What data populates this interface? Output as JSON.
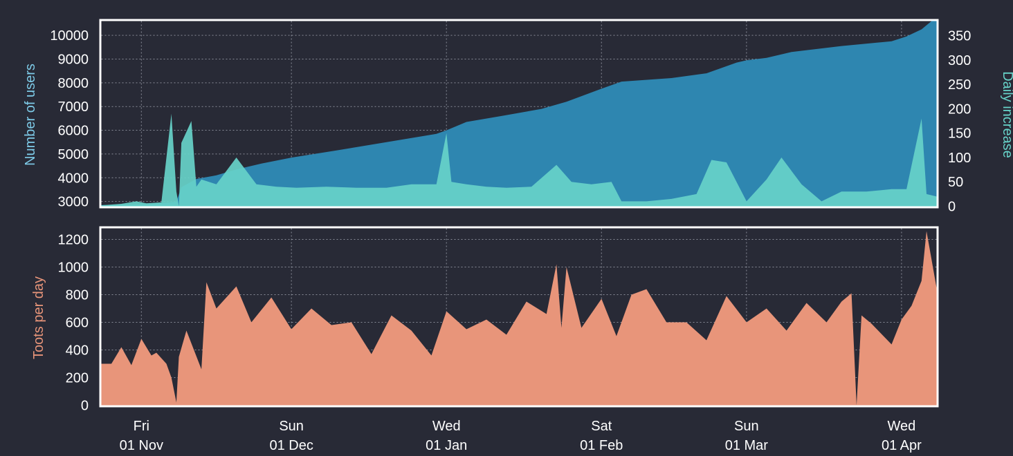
{
  "colors": {
    "background": "#282a36",
    "users_fill": "#2e86b0",
    "daily_fill": "#67d3c9",
    "toots_fill": "#e8957a",
    "users_label": "#7ecbe8",
    "daily_label": "#67d3c9",
    "toots_label": "#e8957a"
  },
  "x_axis": {
    "ticks": [
      {
        "date": "2019-11-01",
        "weekday": "Fri",
        "label": "01 Nov"
      },
      {
        "date": "2019-12-01",
        "weekday": "Sun",
        "label": "01 Dec"
      },
      {
        "date": "2020-01-01",
        "weekday": "Wed",
        "label": "01 Jan"
      },
      {
        "date": "2020-02-01",
        "weekday": "Sat",
        "label": "01 Feb"
      },
      {
        "date": "2020-03-01",
        "weekday": "Sun",
        "label": "01 Mar"
      },
      {
        "date": "2020-04-01",
        "weekday": "Wed",
        "label": "01 Apr"
      }
    ],
    "xlim": [
      "2019-10-24",
      "2020-04-08"
    ]
  },
  "chart_data": [
    {
      "type": "area",
      "ylabel_left": "Number of users",
      "ylabel_right": "Daily increase",
      "ylim_left": [
        2800,
        10600
      ],
      "ylim_right": [
        0,
        380
      ],
      "yticks_left": [
        3000,
        4000,
        5000,
        6000,
        7000,
        8000,
        9000,
        10000
      ],
      "yticks_right": [
        0,
        50,
        100,
        150,
        200,
        250,
        300,
        350
      ],
      "grid": true,
      "series": [
        {
          "name": "Number of users",
          "axis": "left",
          "x": [
            "2019-10-24",
            "2019-10-30",
            "2019-11-05",
            "2019-11-08",
            "2019-11-09",
            "2019-11-12",
            "2019-11-16",
            "2019-11-20",
            "2019-11-25",
            "2019-12-01",
            "2019-12-10",
            "2019-12-20",
            "2019-12-30",
            "2020-01-01",
            "2020-01-05",
            "2020-01-12",
            "2020-01-20",
            "2020-01-25",
            "2020-02-01",
            "2020-02-05",
            "2020-02-15",
            "2020-02-22",
            "2020-02-28",
            "2020-03-01",
            "2020-03-05",
            "2020-03-10",
            "2020-03-20",
            "2020-03-30",
            "2020-04-02",
            "2020-04-05",
            "2020-04-07",
            "2020-04-08"
          ],
          "values": [
            2850,
            2870,
            2920,
            2990,
            3600,
            3950,
            4100,
            4350,
            4600,
            4850,
            5150,
            5500,
            5850,
            6000,
            6350,
            6600,
            6900,
            7200,
            7750,
            8050,
            8200,
            8400,
            8850,
            8950,
            9050,
            9300,
            9550,
            9750,
            9950,
            10250,
            10600,
            10600
          ]
        },
        {
          "name": "Daily increase",
          "axis": "right",
          "x": [
            "2019-10-24",
            "2019-10-28",
            "2019-10-31",
            "2019-11-02",
            "2019-11-05",
            "2019-11-07",
            "2019-11-08",
            "2019-11-08.5",
            "2019-11-09",
            "2019-11-11",
            "2019-11-12",
            "2019-11-13",
            "2019-11-16",
            "2019-11-20",
            "2019-11-24",
            "2019-11-28",
            "2019-12-02",
            "2019-12-08",
            "2019-12-14",
            "2019-12-20",
            "2019-12-25",
            "2019-12-30",
            "2020-01-01",
            "2020-01-02",
            "2020-01-05",
            "2020-01-09",
            "2020-01-13",
            "2020-01-18",
            "2020-01-23",
            "2020-01-26",
            "2020-01-30",
            "2020-02-03",
            "2020-02-05",
            "2020-02-10",
            "2020-02-15",
            "2020-02-20",
            "2020-02-23",
            "2020-02-26",
            "2020-03-01",
            "2020-03-05",
            "2020-03-08",
            "2020-03-12",
            "2020-03-16",
            "2020-03-20",
            "2020-03-25",
            "2020-03-30",
            "2020-04-02",
            "2020-04-05",
            "2020-04-06",
            "2020-04-08"
          ],
          "values": [
            2,
            5,
            10,
            6,
            8,
            190,
            30,
            0,
            130,
            175,
            40,
            55,
            45,
            100,
            45,
            40,
            38,
            40,
            38,
            38,
            45,
            45,
            150,
            50,
            45,
            40,
            38,
            40,
            85,
            50,
            45,
            50,
            10,
            10,
            15,
            25,
            95,
            90,
            10,
            55,
            100,
            45,
            10,
            30,
            30,
            35,
            35,
            180,
            25,
            20
          ]
        }
      ]
    },
    {
      "type": "area",
      "ylabel": "Toots per day",
      "ylim": [
        0,
        1280
      ],
      "yticks": [
        0,
        200,
        400,
        600,
        800,
        1000,
        1200
      ],
      "grid": true,
      "series": [
        {
          "name": "Toots per day",
          "x": [
            "2019-10-24",
            "2019-10-26",
            "2019-10-28",
            "2019-10-30",
            "2019-11-01",
            "2019-11-03",
            "2019-11-04",
            "2019-11-06",
            "2019-11-07",
            "2019-11-08",
            "2019-11-08.5",
            "2019-11-10",
            "2019-11-13",
            "2019-11-14",
            "2019-11-16",
            "2019-11-20",
            "2019-11-23",
            "2019-11-27",
            "2019-12-01",
            "2019-12-05",
            "2019-12-09",
            "2019-12-13",
            "2019-12-17",
            "2019-12-21",
            "2019-12-25",
            "2019-12-29",
            "2020-01-01",
            "2020-01-05",
            "2020-01-09",
            "2020-01-13",
            "2020-01-17",
            "2020-01-21",
            "2020-01-23",
            "2020-01-24",
            "2020-01-25",
            "2020-01-28",
            "2020-02-01",
            "2020-02-04",
            "2020-02-07",
            "2020-02-10",
            "2020-02-14",
            "2020-02-18",
            "2020-02-22",
            "2020-02-26",
            "2020-03-01",
            "2020-03-05",
            "2020-03-09",
            "2020-03-13",
            "2020-03-17",
            "2020-03-20",
            "2020-03-22",
            "2020-03-23",
            "2020-03-24",
            "2020-03-26",
            "2020-03-30",
            "2020-04-01",
            "2020-04-03",
            "2020-04-05",
            "2020-04-06",
            "2020-04-08"
          ],
          "values": [
            300,
            300,
            420,
            290,
            480,
            360,
            380,
            300,
            200,
            20,
            350,
            540,
            260,
            890,
            700,
            860,
            600,
            780,
            550,
            700,
            580,
            600,
            370,
            650,
            540,
            360,
            680,
            550,
            620,
            510,
            750,
            660,
            1020,
            560,
            1000,
            560,
            770,
            500,
            800,
            840,
            600,
            600,
            470,
            790,
            600,
            700,
            540,
            740,
            600,
            750,
            810,
            0,
            650,
            590,
            440,
            620,
            720,
            900,
            1260,
            850
          ]
        }
      ]
    }
  ]
}
